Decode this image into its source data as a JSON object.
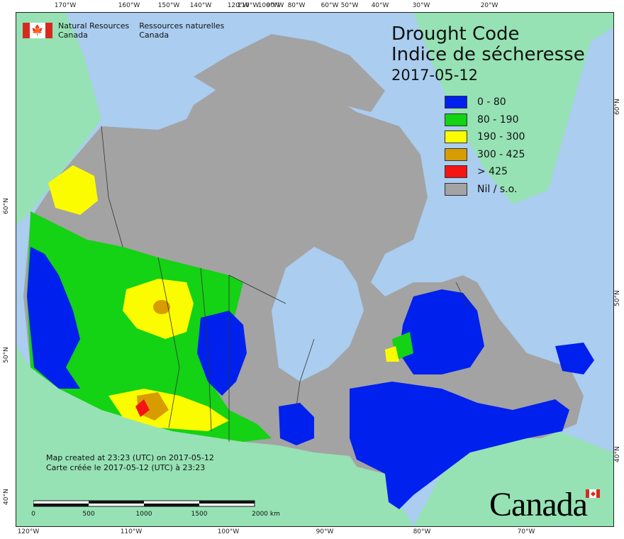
{
  "title": {
    "english": "Drought Code",
    "french": "Indice de sécheresse",
    "date": "2017-05-12"
  },
  "agency": {
    "name_en_line1": "Natural Resources",
    "name_en_line2": "Canada",
    "name_fr_line1": "Ressources naturelles",
    "name_fr_line2": "Canada"
  },
  "legend": [
    {
      "label": "0 - 80",
      "color": "#0020ee"
    },
    {
      "label": "80 - 190",
      "color": "#14d214"
    },
    {
      "label": "190 - 300",
      "color": "#fcfc00"
    },
    {
      "label": "300 - 425",
      "color": "#d89c00"
    },
    {
      "label": "> 425",
      "color": "#f41414"
    },
    {
      "label": "Nil / s.o.",
      "color": "#a3a3a3"
    }
  ],
  "credits": {
    "line_en": "Map created at 23:23 (UTC) on 2017-05-12",
    "line_fr": "Carte créée le 2017-05-12 (UTC) à 23:23"
  },
  "scale": {
    "ticks": [
      "0",
      "500",
      "1000",
      "1500",
      "2000 km"
    ]
  },
  "graticule": {
    "top": [
      "170°W",
      "160°W",
      "150°W",
      "140°W",
      "120°W",
      "110°W",
      "100°W",
      "90°W",
      "80°W",
      "60°W",
      "50°W",
      "40°W",
      "30°W",
      "20°W"
    ],
    "bottom": [
      "120°W",
      "110°W",
      "100°W",
      "90°W",
      "80°W",
      "70°W"
    ],
    "left": [
      "60°N",
      "50°N",
      "40°N"
    ],
    "right": [
      "60°N",
      "50°N",
      "40°N"
    ]
  },
  "wordmark": "Canada",
  "colors": {
    "water": "#aacdf0",
    "foreign_land": "#96e2b4",
    "no_data": "#a3a3a3"
  }
}
